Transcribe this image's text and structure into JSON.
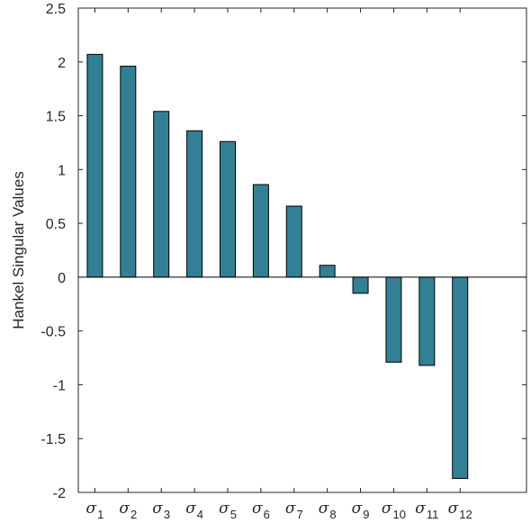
{
  "chart_data": {
    "type": "bar",
    "title": "",
    "xlabel": "",
    "ylabel": "Hankel Singular Values",
    "ylim": [
      -2,
      2.5
    ],
    "yticks": [
      -2,
      -1.5,
      -1,
      -0.5,
      0,
      0.5,
      1,
      1.5,
      2,
      2.5
    ],
    "ytick_labels": [
      "-2",
      "-1.5",
      "-1",
      "-0.5",
      "0",
      "0.5",
      "1",
      "1.5",
      "2",
      "2.5"
    ],
    "categories": [
      {
        "symbol": "σ",
        "sub": "1"
      },
      {
        "symbol": "σ",
        "sub": "2"
      },
      {
        "symbol": "σ",
        "sub": "3"
      },
      {
        "symbol": "σ",
        "sub": "4"
      },
      {
        "symbol": "σ",
        "sub": "5"
      },
      {
        "symbol": "σ",
        "sub": "6"
      },
      {
        "symbol": "σ",
        "sub": "7"
      },
      {
        "symbol": "σ",
        "sub": "8"
      },
      {
        "symbol": "σ",
        "sub": "9"
      },
      {
        "symbol": "σ",
        "sub": "10"
      },
      {
        "symbol": "σ",
        "sub": "11"
      },
      {
        "symbol": "σ",
        "sub": "12"
      }
    ],
    "values": [
      2.07,
      1.96,
      1.54,
      1.36,
      1.26,
      0.86,
      0.66,
      0.11,
      -0.15,
      -0.79,
      -0.82,
      -1.87
    ],
    "xlim": [
      0.5,
      14
    ],
    "grid": false,
    "legend": "none",
    "bar_color": "#337f96",
    "edge_color": "#000000"
  }
}
